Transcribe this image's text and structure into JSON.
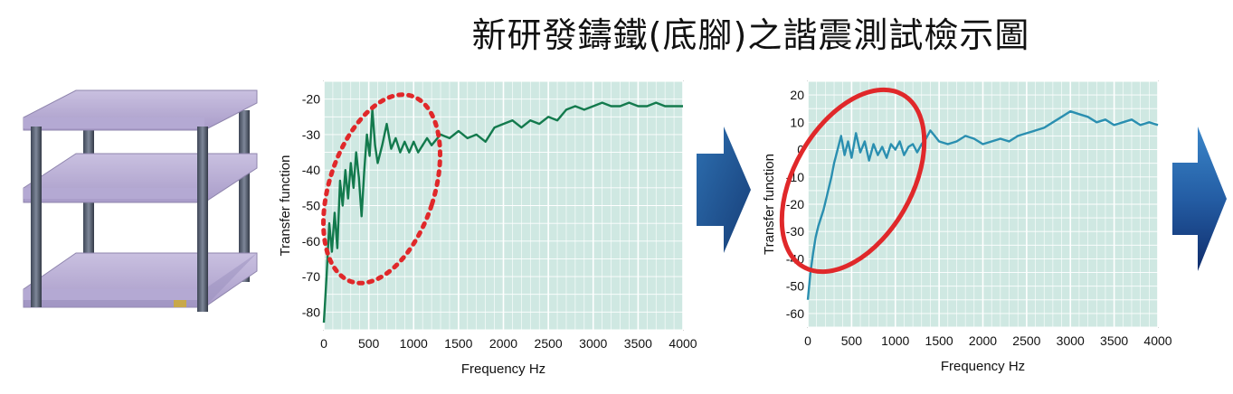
{
  "title": "新研發鑄鐵(底腳)之諧震測試檢示圖",
  "colors": {
    "plot_bg": "#cfe8e2",
    "grid": "#ffffff",
    "series1": "#137a4d",
    "series2": "#2a8fb0",
    "highlight1": "#e0282a",
    "highlight2": "#e0282a",
    "arrow": "#1d4f8f"
  },
  "icons": [
    "equipment-rack-image",
    "right-arrow-icon"
  ],
  "chart_data": [
    {
      "type": "line",
      "xlabel": "Frequency Hz",
      "ylabel": "Transfer function",
      "xlim": [
        0,
        4000
      ],
      "ylim": [
        -85,
        -15
      ],
      "xticks": [
        0,
        500,
        1000,
        1500,
        2000,
        2500,
        3000,
        3500,
        4000
      ],
      "yticks": [
        -20,
        -30,
        -40,
        -50,
        -60,
        -70,
        -80
      ],
      "grid": true,
      "series": [
        {
          "x": [
            0,
            30,
            60,
            90,
            120,
            150,
            180,
            210,
            240,
            270,
            300,
            330,
            360,
            390,
            420,
            450,
            480,
            510,
            540,
            570,
            600,
            650,
            700,
            750,
            800,
            850,
            900,
            950,
            1000,
            1050,
            1100,
            1150,
            1200,
            1300,
            1400,
            1500,
            1600,
            1700,
            1800,
            1900,
            2000,
            2100,
            2200,
            2300,
            2400,
            2500,
            2600,
            2700,
            2800,
            2900,
            3000,
            3100,
            3200,
            3300,
            3400,
            3500,
            3600,
            3700,
            3800,
            3900,
            4000
          ],
          "y": [
            -83,
            -70,
            -55,
            -63,
            -52,
            -62,
            -43,
            -50,
            -40,
            -48,
            -38,
            -45,
            -35,
            -42,
            -53,
            -40,
            -30,
            -36,
            -23,
            -33,
            -38,
            -33,
            -27,
            -34,
            -31,
            -35,
            -32,
            -35,
            -32,
            -35,
            -33,
            -31,
            -33,
            -30,
            -31,
            -29,
            -31,
            -30,
            -32,
            -28,
            -27,
            -26,
            -28,
            -26,
            -27,
            -25,
            -26,
            -23,
            -22,
            -23,
            -22,
            -21,
            -22,
            -22,
            -21,
            -22,
            -22,
            -21,
            -22,
            -22,
            -22
          ]
        }
      ],
      "annotation": "dotted-ellipse"
    },
    {
      "type": "line",
      "xlabel": "Frequency Hz",
      "ylabel": "Transfer function",
      "xlim": [
        0,
        4000
      ],
      "ylim": [
        -65,
        25
      ],
      "xticks": [
        0,
        500,
        1000,
        1500,
        2000,
        2500,
        3000,
        3500,
        4000
      ],
      "yticks": [
        20,
        10,
        0,
        -10,
        -20,
        -30,
        -40,
        -50,
        -60
      ],
      "grid": true,
      "series": [
        {
          "x": [
            0,
            30,
            60,
            90,
            120,
            150,
            180,
            210,
            240,
            270,
            300,
            340,
            380,
            420,
            460,
            500,
            550,
            600,
            650,
            700,
            750,
            800,
            850,
            900,
            950,
            1000,
            1050,
            1100,
            1150,
            1200,
            1250,
            1300,
            1350,
            1400,
            1450,
            1500,
            1600,
            1700,
            1800,
            1900,
            2000,
            2100,
            2200,
            2300,
            2400,
            2500,
            2600,
            2700,
            2800,
            2900,
            3000,
            3100,
            3200,
            3300,
            3400,
            3500,
            3600,
            3700,
            3800,
            3900,
            4000
          ],
          "y": [
            -55,
            -45,
            -38,
            -32,
            -28,
            -25,
            -22,
            -18,
            -14,
            -10,
            -5,
            0,
            5,
            -2,
            3,
            -3,
            6,
            -1,
            3,
            -4,
            2,
            -2,
            1,
            -3,
            2,
            0,
            3,
            -2,
            1,
            2,
            -1,
            2,
            4,
            7,
            5,
            3,
            2,
            3,
            5,
            4,
            2,
            3,
            4,
            3,
            5,
            6,
            7,
            8,
            10,
            12,
            14,
            13,
            12,
            10,
            11,
            9,
            10,
            11,
            9,
            10,
            9
          ]
        }
      ],
      "annotation": "solid-ellipse"
    }
  ]
}
